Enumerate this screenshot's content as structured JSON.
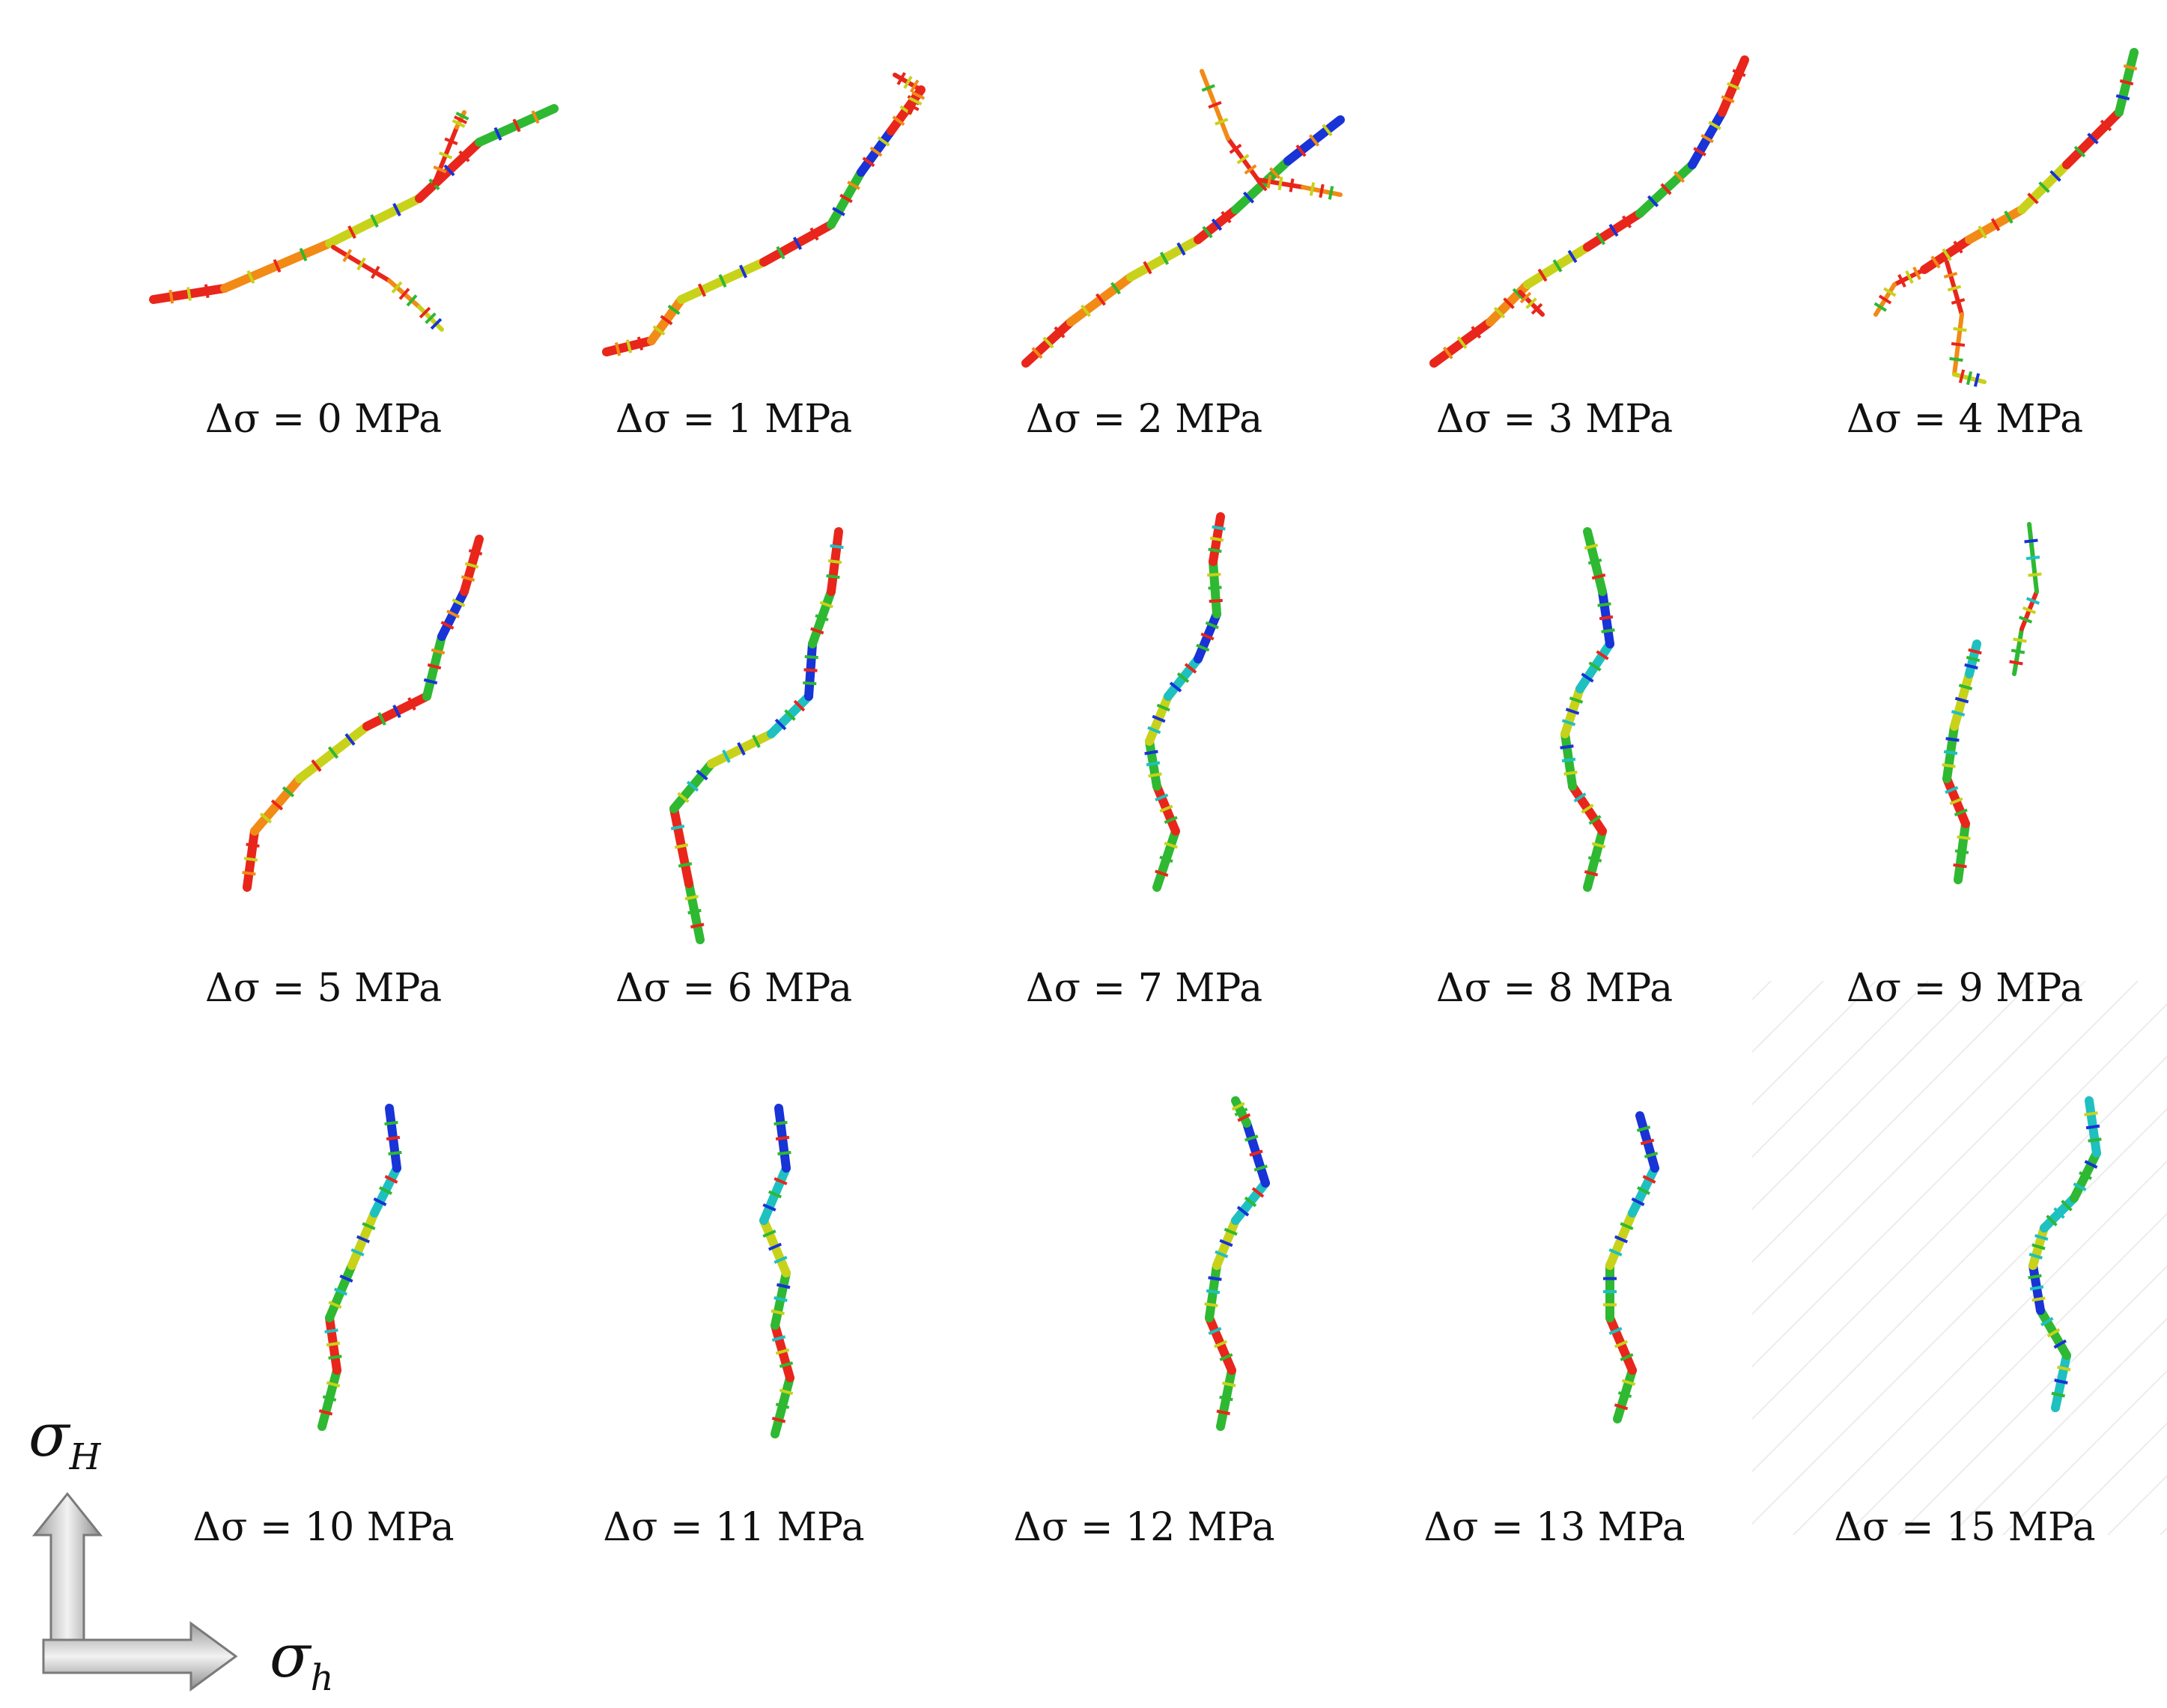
{
  "panels": [
    {
      "label": "Δσ = 0 MPa",
      "tone": "hot"
    },
    {
      "label": "Δσ = 1 MPa",
      "tone": "hot"
    },
    {
      "label": "Δσ = 2 MPa",
      "tone": "hot"
    },
    {
      "label": "Δσ = 3 MPa",
      "tone": "hot"
    },
    {
      "label": "Δσ = 4 MPa",
      "tone": "hot"
    },
    {
      "label": "Δσ = 5 MPa",
      "tone": "hot"
    },
    {
      "label": "Δσ = 6 MPa",
      "tone": "mixed"
    },
    {
      "label": "Δσ = 7 MPa",
      "tone": "mixed"
    },
    {
      "label": "Δσ = 8 MPa",
      "tone": "mixed"
    },
    {
      "label": "Δσ = 9 MPa",
      "tone": "mixed"
    },
    {
      "label": "Δσ = 10 MPa",
      "tone": "mixed"
    },
    {
      "label": "Δσ = 11 MPa",
      "tone": "mixed"
    },
    {
      "label": "Δσ = 12 MPa",
      "tone": "mixed"
    },
    {
      "label": "Δσ = 13 MPa",
      "tone": "mixed"
    },
    {
      "label": "Δσ = 15 MPa",
      "tone": "cool"
    }
  ],
  "axes": {
    "vertical": {
      "symbol": "σ",
      "subscript": "H"
    },
    "horizontal": {
      "symbol": "σ",
      "subscript": "h"
    }
  },
  "colors": {
    "red": "#e8261b",
    "orange": "#f28a16",
    "yellow": "#c8d21a",
    "green": "#2fb832",
    "cyan": "#1fc0c0",
    "blue": "#1833d6",
    "arrow": "#bdbdbd"
  }
}
